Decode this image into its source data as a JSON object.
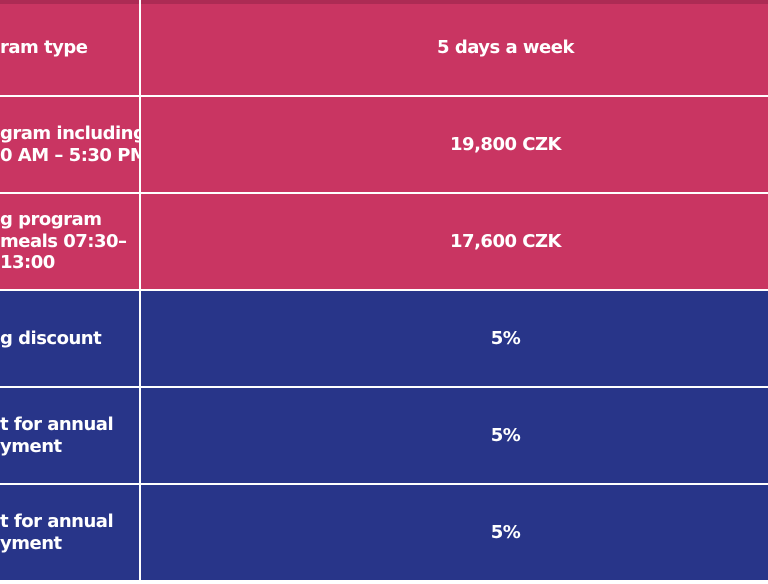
{
  "chart_data": {
    "type": "table",
    "rows": [
      {
        "label": "ram type",
        "value": "5 days a week"
      },
      {
        "label": "gram including 0 AM – 5:30 PM",
        "value": "19,800 CZK"
      },
      {
        "label": "g program meals 07:30– 13:00",
        "value": "17,600 CZK"
      },
      {
        "label": "g discount",
        "value": "5%"
      },
      {
        "label": "t for annual yment",
        "value": "5%"
      },
      {
        "label": "t for annual yment",
        "value": "5%"
      }
    ]
  },
  "table": {
    "colors": {
      "pink": "#c93562",
      "blue": "#283589",
      "divider": "#ffffff",
      "text": "#ffffff"
    },
    "rows": [
      {
        "theme": "pink",
        "label_lines": [
          "ram type"
        ],
        "value": "5 days a week"
      },
      {
        "theme": "pink",
        "label_lines": [
          "gram including",
          "0 AM – 5:30 PM"
        ],
        "value": "19,800 CZK"
      },
      {
        "theme": "pink",
        "label_lines": [
          "g program",
          "meals 07:30–",
          "13:00"
        ],
        "value": "17,600 CZK"
      },
      {
        "theme": "blue",
        "label_lines": [
          "g discount"
        ],
        "value": "5%"
      },
      {
        "theme": "blue",
        "label_lines": [
          "t for annual",
          "yment"
        ],
        "value": "5%"
      },
      {
        "theme": "blue",
        "label_lines": [
          "t for annual",
          "yment"
        ],
        "value": "5%"
      }
    ]
  }
}
